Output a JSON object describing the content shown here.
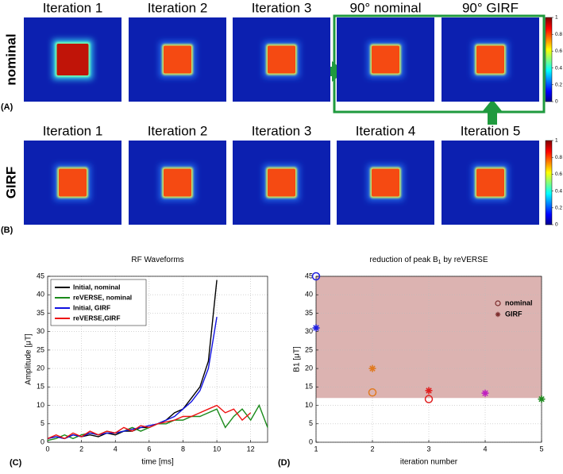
{
  "image_rows": [
    {
      "label": "nominal",
      "panel_label": "(A)",
      "titles": [
        "Iteration 1",
        "Iteration 2",
        "Iteration 3",
        "90° nominal",
        "90° GIRF"
      ],
      "colorbar_ticks": [
        0,
        0.2,
        0.4,
        0.6,
        0.8,
        1
      ]
    },
    {
      "label": "GIRF",
      "panel_label": "(B)",
      "titles": [
        "Iteration 1",
        "Iteration 2",
        "Iteration 3",
        "Iteration 4",
        "Iteration 5"
      ],
      "colorbar_ticks": [
        0,
        0.2,
        0.4,
        0.6,
        0.8,
        1
      ]
    }
  ],
  "chart_data": [
    {
      "type": "line",
      "panel_label": "(C)",
      "title": "RF Waveforms",
      "x_label": "time [ms]",
      "y_label": "Amplitude [μT]",
      "x": [
        0,
        0.5,
        1,
        1.5,
        2,
        2.5,
        3,
        3.5,
        4,
        4.5,
        5,
        5.5,
        6,
        6.5,
        7,
        7.5,
        8,
        8.5,
        9,
        9.5,
        10,
        10.5,
        11,
        11.5,
        12,
        12.5,
        13
      ],
      "series": [
        {
          "name": "Initial, nominal",
          "color": "#000000",
          "values": [
            1,
            1.5,
            1,
            2,
            1.5,
            2,
            1.5,
            2.5,
            2,
            3,
            3,
            4,
            4,
            5,
            6,
            8,
            9,
            12,
            15,
            22,
            44,
            null,
            null,
            null,
            null,
            null,
            null
          ]
        },
        {
          "name": "reVERSE, nominal",
          "color": "#1a8a1a",
          "values": [
            0.5,
            1,
            2,
            1,
            2,
            2.5,
            2,
            3,
            2.5,
            3,
            4,
            3,
            4,
            5,
            5,
            6,
            6,
            7,
            7,
            8,
            9,
            4,
            7,
            9,
            6,
            10,
            4
          ]
        },
        {
          "name": "Initial, GIRF",
          "color": "#1010e0",
          "values": [
            1,
            1.5,
            1,
            2,
            1.5,
            2.5,
            2,
            2.5,
            2.5,
            3,
            3.5,
            4,
            4.5,
            5,
            6,
            7,
            9,
            11,
            14,
            20,
            34,
            null,
            null,
            null,
            null,
            null,
            null
          ]
        },
        {
          "name": "reVERSE,GIRF",
          "color": "#ee1010",
          "values": [
            1,
            2,
            1,
            2.5,
            1.5,
            3,
            2,
            3,
            2.5,
            4,
            3,
            4.5,
            4,
            5,
            5.5,
            6,
            7,
            7,
            8,
            9,
            10,
            8,
            9,
            6,
            8,
            null,
            null
          ]
        }
      ],
      "xlim": [
        0,
        13
      ],
      "xticks": [
        0,
        2,
        4,
        6,
        8,
        10,
        12
      ],
      "ylim": [
        0,
        45
      ],
      "yticks": [
        0,
        5,
        10,
        15,
        20,
        25,
        30,
        35,
        40,
        45
      ],
      "grid": true,
      "legend": "upper left"
    },
    {
      "type": "scatter",
      "panel_label": "(D)",
      "title": "reduction of peak B",
      "title_subscript": "1",
      "title_suffix": " by reVERSE",
      "x_label": "iteration number",
      "y_label": "B1 [μT]",
      "band": [
        12,
        45
      ],
      "band_color": "#dcb3b1",
      "series": [
        {
          "name": "nominal",
          "marker": "circle",
          "legend_color": "#7a2a2a",
          "x": [
            1,
            2,
            3
          ],
          "values": [
            45,
            13.5,
            11.7
          ],
          "colors": [
            "#2020e0",
            "#e07a20",
            "#e02020"
          ]
        },
        {
          "name": "GIRF",
          "marker": "star",
          "legend_color": "#7a2a2a",
          "x": [
            1,
            2,
            3,
            4,
            5
          ],
          "values": [
            31,
            20,
            14,
            13.3,
            11.7
          ],
          "colors": [
            "#2020e0",
            "#e07a20",
            "#e02020",
            "#c020c0",
            "#208a20"
          ]
        }
      ],
      "xlim": [
        1,
        5
      ],
      "xticks": [
        1,
        2,
        3,
        4,
        5
      ],
      "ylim": [
        0,
        45
      ],
      "yticks": [
        0,
        5,
        10,
        15,
        20,
        25,
        30,
        35,
        40,
        45
      ],
      "grid": true,
      "legend": "upper right"
    }
  ]
}
